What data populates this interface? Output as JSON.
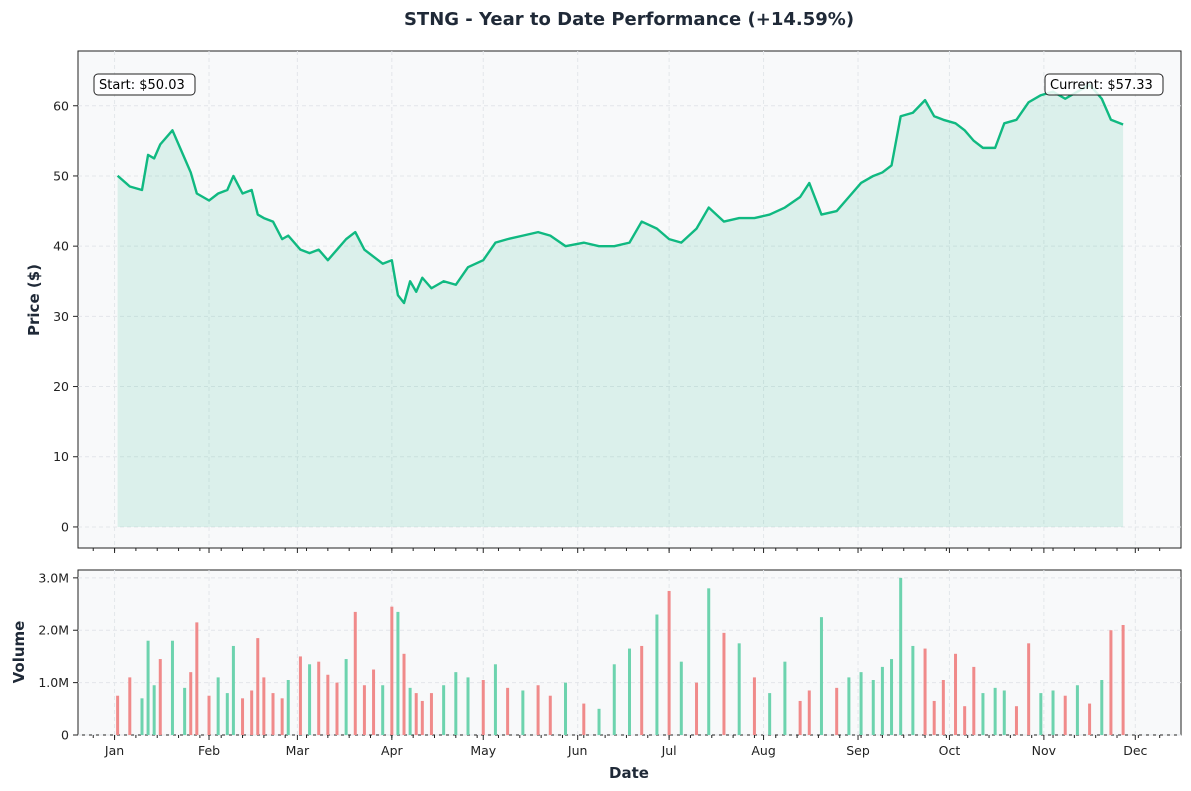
{
  "chart_data": [
    {
      "type": "line",
      "title": "STNG - Year to Date Performance (+14.59%)",
      "xlabel": "",
      "ylabel": "Price ($)",
      "ylim": [
        -3,
        67.8
      ],
      "yticks": [
        "0",
        "10",
        "20",
        "30",
        "40",
        "50",
        "60"
      ],
      "grid": true,
      "fill_to_zero": true,
      "color": "#10b981",
      "annotations": [
        {
          "label": "Start: $50.03",
          "position": "top-left"
        },
        {
          "label": "Current: $57.33",
          "position": "top-right"
        }
      ],
      "x": [
        "2024-01-02",
        "2024-01-06",
        "2024-01-10",
        "2024-01-12",
        "2024-01-14",
        "2024-01-16",
        "2024-01-20",
        "2024-01-24",
        "2024-01-26",
        "2024-01-28",
        "2024-02-01",
        "2024-02-04",
        "2024-02-07",
        "2024-02-09",
        "2024-02-12",
        "2024-02-15",
        "2024-02-17",
        "2024-02-19",
        "2024-02-22",
        "2024-02-25",
        "2024-02-27",
        "2024-03-02",
        "2024-03-05",
        "2024-03-08",
        "2024-03-11",
        "2024-03-14",
        "2024-03-17",
        "2024-03-20",
        "2024-03-23",
        "2024-03-26",
        "2024-03-29",
        "2024-04-01",
        "2024-04-03",
        "2024-04-05",
        "2024-04-07",
        "2024-04-09",
        "2024-04-11",
        "2024-04-14",
        "2024-04-18",
        "2024-04-22",
        "2024-04-26",
        "2024-05-01",
        "2024-05-05",
        "2024-05-09",
        "2024-05-14",
        "2024-05-19",
        "2024-05-23",
        "2024-05-28",
        "2024-06-03",
        "2024-06-08",
        "2024-06-13",
        "2024-06-18",
        "2024-06-22",
        "2024-06-27",
        "2024-07-01",
        "2024-07-05",
        "2024-07-10",
        "2024-07-14",
        "2024-07-19",
        "2024-07-24",
        "2024-07-29",
        "2024-08-03",
        "2024-08-08",
        "2024-08-13",
        "2024-08-16",
        "2024-08-20",
        "2024-08-25",
        "2024-08-29",
        "2024-09-02",
        "2024-09-06",
        "2024-09-09",
        "2024-09-12",
        "2024-09-15",
        "2024-09-19",
        "2024-09-23",
        "2024-09-26",
        "2024-09-29",
        "2024-10-03",
        "2024-10-06",
        "2024-10-09",
        "2024-10-12",
        "2024-10-16",
        "2024-10-19",
        "2024-10-23",
        "2024-10-27",
        "2024-10-31",
        "2024-11-04",
        "2024-11-08",
        "2024-11-12",
        "2024-11-16",
        "2024-11-20",
        "2024-11-23",
        "2024-11-27"
      ],
      "series": [
        {
          "values": [
            50.03,
            48.5,
            48.0,
            53.0,
            52.5,
            54.5,
            56.5,
            52.5,
            50.5,
            47.5,
            46.5,
            47.5,
            48.0,
            50.0,
            47.5,
            48.0,
            44.5,
            44.0,
            43.5,
            41.0,
            41.5,
            39.5,
            39.0,
            39.5,
            38.0,
            39.5,
            41.0,
            42.0,
            39.5,
            38.5,
            37.5,
            38.0,
            33.0,
            31.9,
            35.0,
            33.5,
            35.5,
            34.0,
            35.0,
            34.5,
            37.0,
            38.0,
            40.5,
            41.0,
            41.5,
            42.0,
            41.5,
            40.0,
            40.5,
            40.0,
            40.0,
            40.5,
            43.5,
            42.5,
            41.0,
            40.5,
            42.5,
            45.5,
            43.5,
            44.0,
            44.0,
            44.5,
            45.5,
            47.0,
            49.0,
            44.5,
            45.0,
            47.0,
            49.0,
            50.0,
            50.5,
            51.5,
            58.5,
            59.0,
            60.8,
            58.5,
            58.0,
            57.5,
            56.5,
            55.0,
            54.0,
            54.0,
            57.5,
            58.0,
            60.5,
            61.5,
            62.0,
            61.0,
            62.0,
            63.0,
            61.0,
            58.0,
            57.33
          ]
        }
      ]
    },
    {
      "type": "bar",
      "xlabel": "Date",
      "ylabel": "Volume",
      "ylim": [
        0,
        3150000
      ],
      "yticks": [
        "0",
        "1.0M",
        "2.0M",
        "3.0M"
      ],
      "xticks": [
        "Jan",
        "Feb",
        "Mar",
        "Apr",
        "May",
        "Jun",
        "Jul",
        "Aug",
        "Sep",
        "Oct",
        "Nov",
        "Dec"
      ],
      "grid": true,
      "colors": {
        "up": "#6dd3ae",
        "down": "#f08a8a"
      },
      "x": [
        "2024-01-02",
        "2024-01-06",
        "2024-01-10",
        "2024-01-12",
        "2024-01-14",
        "2024-01-16",
        "2024-01-20",
        "2024-01-24",
        "2024-01-26",
        "2024-01-28",
        "2024-02-01",
        "2024-02-04",
        "2024-02-07",
        "2024-02-09",
        "2024-02-12",
        "2024-02-15",
        "2024-02-17",
        "2024-02-19",
        "2024-02-22",
        "2024-02-25",
        "2024-02-27",
        "2024-03-02",
        "2024-03-05",
        "2024-03-08",
        "2024-03-11",
        "2024-03-14",
        "2024-03-17",
        "2024-03-20",
        "2024-03-23",
        "2024-03-26",
        "2024-03-29",
        "2024-04-01",
        "2024-04-03",
        "2024-04-05",
        "2024-04-07",
        "2024-04-09",
        "2024-04-11",
        "2024-04-14",
        "2024-04-18",
        "2024-04-22",
        "2024-04-26",
        "2024-05-01",
        "2024-05-05",
        "2024-05-09",
        "2024-05-14",
        "2024-05-19",
        "2024-05-23",
        "2024-05-28",
        "2024-06-03",
        "2024-06-08",
        "2024-06-13",
        "2024-06-18",
        "2024-06-22",
        "2024-06-27",
        "2024-07-01",
        "2024-07-05",
        "2024-07-10",
        "2024-07-14",
        "2024-07-19",
        "2024-07-24",
        "2024-07-29",
        "2024-08-03",
        "2024-08-08",
        "2024-08-13",
        "2024-08-16",
        "2024-08-20",
        "2024-08-25",
        "2024-08-29",
        "2024-09-02",
        "2024-09-06",
        "2024-09-09",
        "2024-09-12",
        "2024-09-15",
        "2024-09-19",
        "2024-09-23",
        "2024-09-26",
        "2024-09-29",
        "2024-10-03",
        "2024-10-06",
        "2024-10-09",
        "2024-10-12",
        "2024-10-16",
        "2024-10-19",
        "2024-10-23",
        "2024-10-27",
        "2024-10-31",
        "2024-11-04",
        "2024-11-08",
        "2024-11-12",
        "2024-11-16",
        "2024-11-20",
        "2024-11-23",
        "2024-11-27"
      ],
      "values": [
        750000,
        1100000,
        700000,
        1800000,
        950000,
        1450000,
        1800000,
        900000,
        1200000,
        2150000,
        750000,
        1100000,
        800000,
        1700000,
        700000,
        850000,
        1850000,
        1100000,
        800000,
        700000,
        1050000,
        1500000,
        1350000,
        1400000,
        1150000,
        1000000,
        1450000,
        2350000,
        950000,
        1250000,
        950000,
        2450000,
        2350000,
        1550000,
        900000,
        800000,
        650000,
        800000,
        950000,
        1200000,
        1100000,
        1050000,
        1350000,
        900000,
        850000,
        950000,
        750000,
        1000000,
        600000,
        500000,
        1350000,
        1650000,
        1700000,
        2300000,
        2750000,
        1400000,
        1000000,
        2800000,
        1950000,
        1750000,
        1100000,
        800000,
        1400000,
        650000,
        850000,
        2250000,
        900000,
        1100000,
        1200000,
        1050000,
        1300000,
        1450000,
        3000000,
        1700000,
        1650000,
        650000,
        1050000,
        1550000,
        550000,
        1300000,
        800000,
        900000,
        850000,
        550000,
        1750000,
        800000,
        850000,
        750000,
        950000,
        600000,
        1050000,
        2000000,
        2100000
      ],
      "direction": [
        "down",
        "down",
        "up",
        "up",
        "up",
        "down",
        "up",
        "up",
        "down",
        "down",
        "down",
        "up",
        "up",
        "up",
        "down",
        "down",
        "down",
        "down",
        "down",
        "down",
        "up",
        "down",
        "up",
        "down",
        "down",
        "down",
        "up",
        "down",
        "down",
        "down",
        "up",
        "down",
        "up",
        "down",
        "up",
        "down",
        "down",
        "down",
        "up",
        "up",
        "up",
        "down",
        "up",
        "down",
        "up",
        "down",
        "down",
        "up",
        "down",
        "up",
        "up",
        "up",
        "down",
        "up",
        "down",
        "up",
        "down",
        "up",
        "down",
        "up",
        "down",
        "up",
        "up",
        "down",
        "down",
        "up",
        "down",
        "up",
        "up",
        "up",
        "up",
        "up",
        "up",
        "up",
        "down",
        "down",
        "down",
        "down",
        "down",
        "down",
        "up",
        "up",
        "up",
        "down",
        "down",
        "up",
        "up",
        "down",
        "up",
        "down",
        "up",
        "down",
        "down"
      ]
    }
  ]
}
